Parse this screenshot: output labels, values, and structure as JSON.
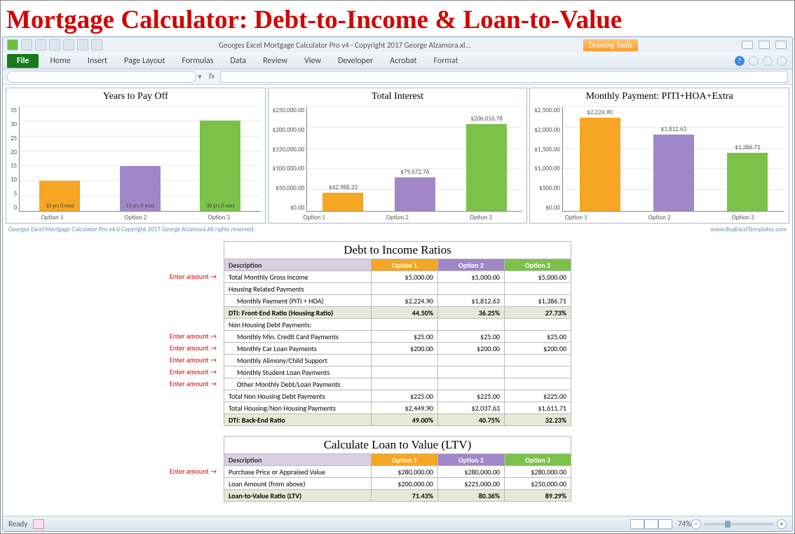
{
  "page_title": "Mortgage Calculator: Debt-to-Income & Loan-to-Value",
  "window_title": "Georges Excel Mortgage Calculator Pro v4 - Copyright 2017 George Alzamora.xl...",
  "drawing_tools": "Drawing Tools",
  "ribbon": {
    "file": "File",
    "tabs": [
      "Home",
      "Insert",
      "Page Layout",
      "Formulas",
      "Data",
      "Review",
      "View",
      "Developer",
      "Acrobat"
    ],
    "format": "Format"
  },
  "credit_left": "Georges Excel Mortgage Calculator Pro v4.0    Copyright 2017  George Alzamora  All rights reserved.",
  "credit_right": "www.BuyExcelTemplates.com",
  "status_ready": "Ready",
  "zoom_pct": "74%",
  "enter_amount": "Enter amount →",
  "colors": {
    "opt1": "#f5a623",
    "opt2": "#a088c8",
    "opt3": "#7cc24a",
    "grid": "#e8e8e8",
    "axis": "#888"
  },
  "charts": [
    {
      "title": "Years to Pay Off",
      "ymax": 35,
      "yticks": [
        "0",
        "5",
        "10",
        "15",
        "20",
        "25",
        "30",
        "35"
      ],
      "bars": [
        {
          "x": "Option 1",
          "value": 10,
          "color": "#f5a623",
          "label_in": "10 yrs 0 mos"
        },
        {
          "x": "Option 2",
          "value": 15,
          "color": "#a088c8",
          "label_in": "15 yrs 0 mos"
        },
        {
          "x": "Option 3",
          "value": 30,
          "color": "#7cc24a",
          "label_in": "30 yrs 0 mos"
        }
      ]
    },
    {
      "title": "Total Interest",
      "ymax": 250000,
      "yticks": [
        "$0.00",
        "$50,000.00",
        "$100,000.00",
        "$150,000.00",
        "$200,000.00",
        "$250,000.00"
      ],
      "bars": [
        {
          "x": "Option 1",
          "value": 42988.33,
          "color": "#f5a623",
          "label_top": "$42,988.33"
        },
        {
          "x": "Option 2",
          "value": 79672.76,
          "color": "#a088c8",
          "label_top": "$79,672.76"
        },
        {
          "x": "Option 3",
          "value": 206016.78,
          "color": "#7cc24a",
          "label_top": "$206,016.78"
        }
      ]
    },
    {
      "title": "Monthly Payment: PITI+HOA+Extra",
      "ymax": 2500,
      "yticks": [
        "$0.00",
        "$500.00",
        "$1,000.00",
        "$1,500.00",
        "$2,000.00",
        "$2,500.00"
      ],
      "bars": [
        {
          "x": "Option 1",
          "value": 2224.9,
          "color": "#f5a623",
          "label_top": "$2,224.90"
        },
        {
          "x": "Option 2",
          "value": 1812.63,
          "color": "#a088c8",
          "label_top": "$1,812.63"
        },
        {
          "x": "Option 3",
          "value": 1386.71,
          "color": "#7cc24a",
          "label_top": "$1,386.71"
        }
      ]
    }
  ],
  "dti": {
    "title": "Debt to Income Ratios",
    "headers": [
      "Description",
      "Option 1",
      "Option 2",
      "Option 3"
    ],
    "rows": [
      {
        "desc": "Total Monthly Gross Income",
        "v": [
          "$5,000.00",
          "$5,000.00",
          "$5,000.00"
        ],
        "enter": true
      },
      {
        "desc": "Housing Related Payments",
        "v": [
          "",
          "",
          ""
        ],
        "section": true
      },
      {
        "desc": "Monthly Payment (PITI + HOA)",
        "v": [
          "$2,224.90",
          "$1,812.63",
          "$1,386.71"
        ],
        "indent": true
      },
      {
        "desc": "DTI: Front-End Ratio (Housing Ratio)",
        "v": [
          "44.50%",
          "36.25%",
          "27.73%"
        ],
        "highlight": true
      },
      {
        "desc": "Non Housing Debt Payments:",
        "v": [
          "",
          "",
          ""
        ],
        "section": true
      },
      {
        "desc": "Monthly Min. Credit Card Payments",
        "v": [
          "$25.00",
          "$25.00",
          "$25.00"
        ],
        "indent": true,
        "enter": true
      },
      {
        "desc": "Monthly Car Loan Payments",
        "v": [
          "$200.00",
          "$200.00",
          "$200.00"
        ],
        "indent": true,
        "enter": true
      },
      {
        "desc": "Monthly Alimony/Child Support",
        "v": [
          "",
          "",
          ""
        ],
        "indent": true,
        "enter": true
      },
      {
        "desc": "Monthly Student Loan Payments",
        "v": [
          "",
          "",
          ""
        ],
        "indent": true,
        "enter": true
      },
      {
        "desc": "Other Monthly Debt/Loan Payments",
        "v": [
          "",
          "",
          ""
        ],
        "indent": true,
        "enter": true
      },
      {
        "desc": "Total Non Housing Debt Payments",
        "v": [
          "$225.00",
          "$225.00",
          "$225.00"
        ]
      },
      {
        "desc": "Total Housing/Non Housing Payments",
        "v": [
          "$2,449.90",
          "$2,037.63",
          "$1,611.71"
        ]
      },
      {
        "desc": "DTI: Back-End Ratio",
        "v": [
          "49.00%",
          "40.75%",
          "32.23%"
        ],
        "highlight": true
      }
    ]
  },
  "ltv": {
    "title": "Calculate Loan to Value (LTV)",
    "headers": [
      "Description",
      "Option 1",
      "Option 2",
      "Option 3"
    ],
    "rows": [
      {
        "desc": "Purchase Price or Appraised Value",
        "v": [
          "$280,000.00",
          "$280,000.00",
          "$280,000.00"
        ],
        "enter": true
      },
      {
        "desc": "Loan Amount (from above)",
        "v": [
          "$200,000.00",
          "$225,000.00",
          "$250,000.00"
        ]
      },
      {
        "desc": "Loan-to-Value Ratio (LTV)",
        "v": [
          "71.43%",
          "80.36%",
          "89.29%"
        ],
        "highlight": true
      }
    ]
  }
}
